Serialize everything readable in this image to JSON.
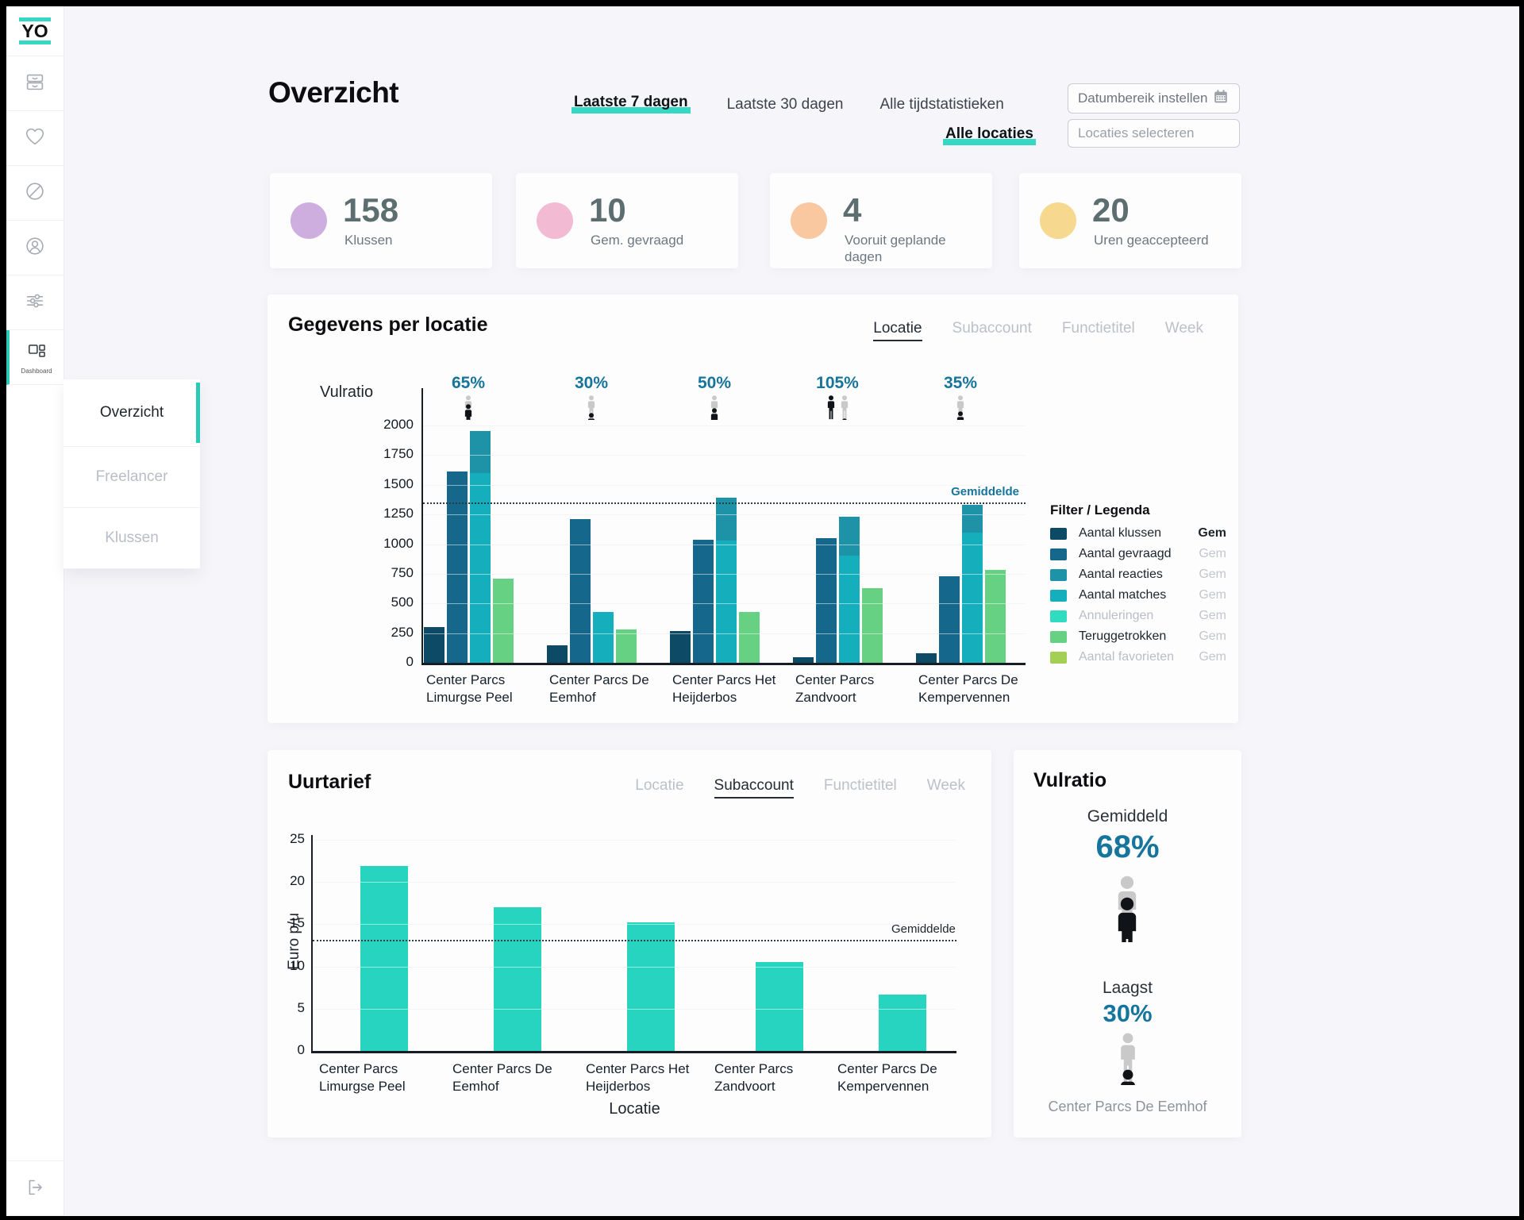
{
  "sidebar": {
    "logo_text": "YO",
    "icons": [
      {
        "name": "archive-icon"
      },
      {
        "name": "heart-icon"
      },
      {
        "name": "ban-icon"
      },
      {
        "name": "user-circle-icon"
      },
      {
        "name": "sliders-icon"
      }
    ],
    "dashboard": {
      "name": "dashboard-icon",
      "label": "Dashboard",
      "active": true
    },
    "logout": {
      "name": "logout-icon"
    },
    "submenu": [
      {
        "label": "Overzicht",
        "active": true
      },
      {
        "label": "Freelancer",
        "active": false
      },
      {
        "label": "Klussen",
        "active": false
      }
    ]
  },
  "header": {
    "title": "Overzicht",
    "range_tabs": [
      {
        "label": "Laatste 7 dagen",
        "active": true
      },
      {
        "label": "Laatste 30 dagen",
        "active": false
      },
      {
        "label": "Alle tijdstatistieken",
        "active": false
      }
    ],
    "date_button_label": "Datumbereik instellen",
    "locations_tab": "Alle locaties",
    "locations_placeholder": "Locaties selecteren"
  },
  "stats": [
    {
      "value": "158",
      "label": "Klussen",
      "color": "#cdaede"
    },
    {
      "value": "10",
      "label": "Gem. gevraagd",
      "color": "#f3bad3"
    },
    {
      "value": "4",
      "label": "Vooruit geplande dagen",
      "color": "#f9c8a0"
    },
    {
      "value": "20",
      "label": "Uren geaccepteerd",
      "color": "#f6d88e"
    }
  ],
  "chart_data": [
    {
      "type": "bar",
      "title": "Gegevens per locatie",
      "tabs": [
        {
          "label": "Locatie",
          "active": true
        },
        {
          "label": "Subaccount",
          "active": false
        },
        {
          "label": "Functietitel",
          "active": false
        },
        {
          "label": "Week",
          "active": false
        }
      ],
      "ylabel": "Vulratio",
      "ylim": [
        0,
        2000
      ],
      "yticks": [
        0,
        250,
        500,
        750,
        1000,
        1250,
        1500,
        1750,
        2000
      ],
      "categories": [
        "Center Parcs Limurgse Peel",
        "Center Parcs De Eemhof",
        "Center Parcs Het Heijderbos",
        "Center Parcs Zandvoort",
        "Center Parcs De Kempervennen"
      ],
      "group_percentages": [
        "65%",
        "30%",
        "50%",
        "105%",
        "35%"
      ],
      "person_fills": [
        [
          65
        ],
        [
          30
        ],
        [
          50
        ],
        [
          100,
          5
        ],
        [
          35
        ]
      ],
      "series": [
        {
          "name": "Aantal klussen",
          "color": "#0d4a66",
          "values": [
            300,
            150,
            270,
            50,
            80
          ]
        },
        {
          "name": "Aantal gevraagd",
          "color": "#15678b",
          "values": [
            1610,
            1210,
            1040,
            1050,
            730
          ]
        },
        {
          "name": "Aantal reacties",
          "color": "#1e93a8",
          "values": [
            1950,
            430,
            1390,
            1230,
            1330
          ]
        },
        {
          "name": "Aantal matches",
          "color": "#14aebc",
          "values": [
            1600,
            430,
            1030,
            900,
            1100
          ]
        },
        {
          "name": "Teruggetrokken",
          "color": "#66d083",
          "values": [
            710,
            280,
            430,
            630,
            780
          ]
        }
      ],
      "average": {
        "label": "Gemiddelde",
        "value": 1350
      },
      "legend": {
        "title": "Filter / Legenda",
        "gem_label": "Gem",
        "items": [
          {
            "label": "Aantal klussen",
            "color": "#0d4a66",
            "muted": false,
            "gem_bold": true
          },
          {
            "label": "Aantal gevraagd",
            "color": "#15678b",
            "muted": false,
            "gem_bold": false
          },
          {
            "label": "Aantal reacties",
            "color": "#1e93a8",
            "muted": false,
            "gem_bold": false
          },
          {
            "label": "Aantal matches",
            "color": "#14aebc",
            "muted": false,
            "gem_bold": false
          },
          {
            "label": "Annuleringen",
            "color": "#2fdcc0",
            "muted": true,
            "gem_bold": false
          },
          {
            "label": "Teruggetrokken",
            "color": "#66d083",
            "muted": false,
            "gem_bold": false
          },
          {
            "label": "Aantal favorieten",
            "color": "#a3d054",
            "muted": true,
            "gem_bold": false
          }
        ]
      }
    },
    {
      "type": "bar",
      "title": "Uurtarief",
      "tabs": [
        {
          "label": "Locatie",
          "active": false
        },
        {
          "label": "Subaccount",
          "active": true
        },
        {
          "label": "Functietitel",
          "active": false
        },
        {
          "label": "Week",
          "active": false
        }
      ],
      "ylabel": "Euro p/u",
      "xlabel": "Locatie",
      "ylim": [
        0,
        25
      ],
      "yticks": [
        0,
        5,
        10,
        15,
        20,
        25
      ],
      "categories": [
        "Center Parcs Limurgse Peel",
        "Center Parcs De Eemhof",
        "Center Parcs Het Heijderbos",
        "Center Parcs Zandvoort",
        "Center Parcs De Kempervennen"
      ],
      "values": [
        21.9,
        17.0,
        15.2,
        10.5,
        6.7
      ],
      "bar_color": "#26d4bf",
      "average": {
        "label": "Gemiddelde",
        "value": 13.2
      }
    }
  ],
  "vulratio": {
    "title": "Vulratio",
    "average_label": "Gemiddeld",
    "average_value": "68%",
    "average_fill": 68,
    "lowest_label": "Laagst",
    "lowest_value": "30%",
    "lowest_fill": 30,
    "lowest_location": "Center Parcs De Eemhof"
  }
}
